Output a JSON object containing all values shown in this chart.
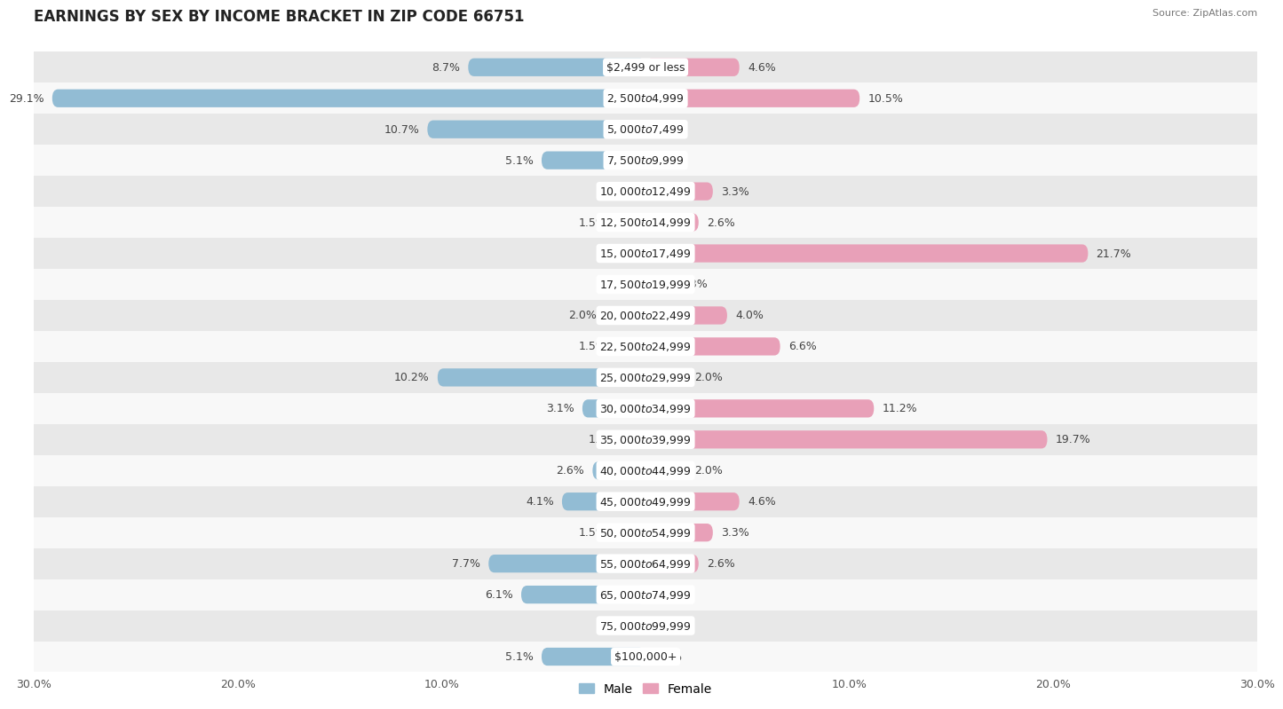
{
  "title": "EARNINGS BY SEX BY INCOME BRACKET IN ZIP CODE 66751",
  "source": "Source: ZipAtlas.com",
  "categories": [
    "$2,499 or less",
    "$2,500 to $4,999",
    "$5,000 to $7,499",
    "$7,500 to $9,999",
    "$10,000 to $12,499",
    "$12,500 to $14,999",
    "$15,000 to $17,499",
    "$17,500 to $19,999",
    "$20,000 to $22,499",
    "$22,500 to $24,999",
    "$25,000 to $29,999",
    "$30,000 to $34,999",
    "$35,000 to $39,999",
    "$40,000 to $44,999",
    "$45,000 to $49,999",
    "$50,000 to $54,999",
    "$55,000 to $64,999",
    "$65,000 to $74,999",
    "$75,000 to $99,999",
    "$100,000+"
  ],
  "male_values": [
    8.7,
    29.1,
    10.7,
    5.1,
    0.0,
    1.5,
    0.0,
    0.0,
    2.0,
    1.5,
    10.2,
    3.1,
    1.0,
    2.6,
    4.1,
    1.5,
    7.7,
    6.1,
    0.0,
    5.1
  ],
  "female_values": [
    4.6,
    10.5,
    0.0,
    0.0,
    3.3,
    2.6,
    21.7,
    1.3,
    4.0,
    6.6,
    2.0,
    11.2,
    19.7,
    2.0,
    4.6,
    3.3,
    2.6,
    0.0,
    0.0,
    0.0
  ],
  "male_color": "#92bcd4",
  "female_color": "#e8a0b8",
  "bg_row_odd": "#e8e8e8",
  "bg_row_even": "#f8f8f8",
  "axis_limit": 30.0,
  "title_fontsize": 12,
  "label_fontsize": 9,
  "tick_fontsize": 9,
  "legend_fontsize": 10,
  "bar_height": 0.58
}
